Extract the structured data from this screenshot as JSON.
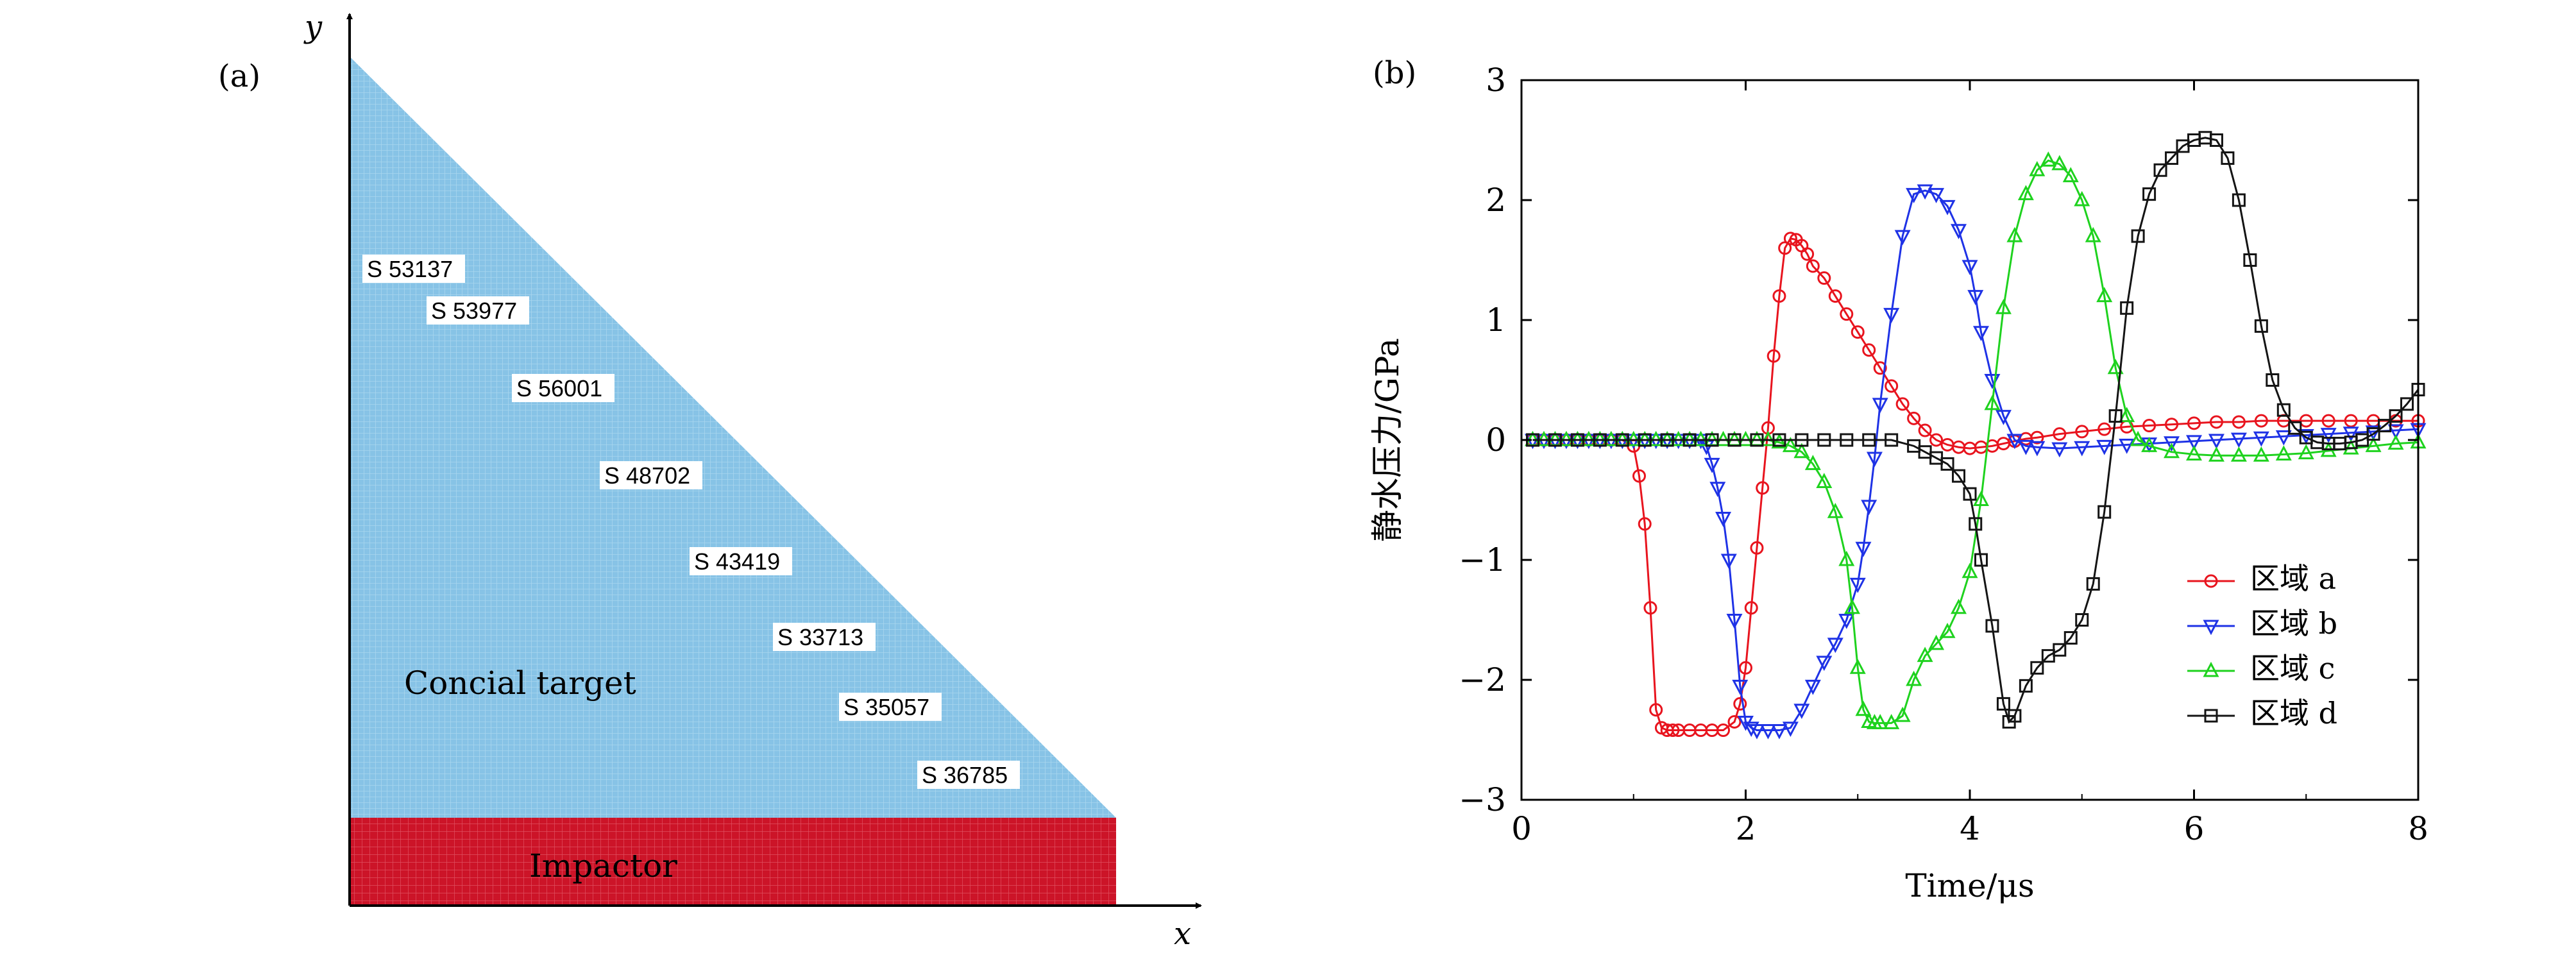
{
  "panel_a": {
    "label": "(a)",
    "x_axis_label": "x",
    "y_axis_label": "y",
    "target_label": "Concial target",
    "impactor_label": "Impactor",
    "sensor_tags": [
      "S 53137",
      "S 53977",
      "S 56001",
      "S 48702",
      "S 43419",
      "S 33713",
      "S 35057",
      "S 36785"
    ],
    "colors": {
      "target": "#87c3e6",
      "impactor": "#cc1428",
      "tag_bg": "#ffffff"
    }
  },
  "chart_data": {
    "type": "line",
    "label": "(b)",
    "xlabel": "Time/μs",
    "ylabel": "静水压力/GPa",
    "xlim": [
      0,
      8
    ],
    "ylim": [
      -3,
      3
    ],
    "xticks": [
      0,
      2,
      4,
      6,
      8
    ],
    "yticks": [
      -3,
      -2,
      -1,
      0,
      1,
      2,
      3
    ],
    "legend_position": "lower-right",
    "series": [
      {
        "name": "区域 a",
        "color": "#e8141e",
        "marker": "circle",
        "x": [
          0.1,
          0.2,
          0.3,
          0.4,
          0.5,
          0.6,
          0.7,
          0.8,
          0.9,
          1.0,
          1.05,
          1.1,
          1.15,
          1.2,
          1.25,
          1.3,
          1.35,
          1.4,
          1.5,
          1.6,
          1.7,
          1.8,
          1.9,
          1.95,
          2.0,
          2.05,
          2.1,
          2.15,
          2.2,
          2.25,
          2.3,
          2.35,
          2.4,
          2.45,
          2.5,
          2.55,
          2.6,
          2.7,
          2.8,
          2.9,
          3.0,
          3.1,
          3.2,
          3.3,
          3.4,
          3.5,
          3.6,
          3.7,
          3.8,
          3.9,
          4.0,
          4.1,
          4.2,
          4.3,
          4.4,
          4.5,
          4.6,
          4.8,
          5.0,
          5.2,
          5.4,
          5.6,
          5.8,
          6.0,
          6.2,
          6.4,
          6.6,
          6.8,
          7.0,
          7.2,
          7.4,
          7.6,
          7.8,
          8.0
        ],
        "y": [
          0,
          0,
          0,
          0,
          0,
          0,
          0,
          0,
          0,
          -0.05,
          -0.3,
          -0.7,
          -1.4,
          -2.25,
          -2.4,
          -2.42,
          -2.42,
          -2.42,
          -2.42,
          -2.42,
          -2.42,
          -2.42,
          -2.35,
          -2.2,
          -1.9,
          -1.4,
          -0.9,
          -0.4,
          0.1,
          0.7,
          1.2,
          1.6,
          1.68,
          1.67,
          1.62,
          1.55,
          1.45,
          1.35,
          1.2,
          1.05,
          0.9,
          0.75,
          0.6,
          0.45,
          0.3,
          0.18,
          0.08,
          0.0,
          -0.04,
          -0.06,
          -0.07,
          -0.06,
          -0.05,
          -0.03,
          -0.01,
          0.01,
          0.02,
          0.05,
          0.07,
          0.09,
          0.11,
          0.12,
          0.13,
          0.14,
          0.15,
          0.15,
          0.16,
          0.16,
          0.16,
          0.16,
          0.16,
          0.16,
          0.16,
          0.16
        ]
      },
      {
        "name": "区域 b",
        "color": "#1e32e6",
        "marker": "triangle-down",
        "x": [
          0.1,
          0.2,
          0.3,
          0.4,
          0.5,
          0.6,
          0.7,
          0.8,
          0.9,
          1.0,
          1.1,
          1.2,
          1.3,
          1.4,
          1.5,
          1.6,
          1.65,
          1.7,
          1.75,
          1.8,
          1.85,
          1.9,
          1.95,
          2.0,
          2.05,
          2.1,
          2.2,
          2.3,
          2.4,
          2.5,
          2.6,
          2.7,
          2.8,
          2.9,
          3.0,
          3.05,
          3.1,
          3.15,
          3.2,
          3.3,
          3.4,
          3.5,
          3.6,
          3.7,
          3.8,
          3.9,
          4.0,
          4.05,
          4.1,
          4.2,
          4.3,
          4.4,
          4.5,
          4.6,
          4.8,
          5.0,
          5.2,
          5.4,
          5.6,
          5.8,
          6.0,
          6.2,
          6.4,
          6.6,
          6.8,
          7.0,
          7.2,
          7.4,
          7.6,
          7.8,
          8.0
        ],
        "y": [
          0,
          0,
          0,
          0,
          0,
          0,
          0,
          0,
          0,
          0,
          0,
          0,
          0,
          0,
          0,
          0,
          -0.05,
          -0.2,
          -0.4,
          -0.65,
          -1.0,
          -1.5,
          -2.05,
          -2.35,
          -2.4,
          -2.42,
          -2.42,
          -2.42,
          -2.4,
          -2.25,
          -2.05,
          -1.85,
          -1.7,
          -1.5,
          -1.2,
          -0.9,
          -0.55,
          -0.15,
          0.3,
          1.05,
          1.7,
          2.05,
          2.08,
          2.05,
          1.95,
          1.75,
          1.45,
          1.2,
          0.9,
          0.5,
          0.2,
          0.0,
          -0.05,
          -0.06,
          -0.07,
          -0.06,
          -0.05,
          -0.04,
          -0.03,
          -0.02,
          -0.01,
          0.0,
          0.01,
          0.02,
          0.03,
          0.04,
          0.05,
          0.06,
          0.07,
          0.08,
          0.09
        ]
      },
      {
        "name": "区域 c",
        "color": "#1ed21e",
        "marker": "triangle-up",
        "x": [
          0.1,
          0.2,
          0.3,
          0.4,
          0.5,
          0.6,
          0.7,
          0.8,
          0.9,
          1.0,
          1.1,
          1.2,
          1.3,
          1.4,
          1.5,
          1.6,
          1.7,
          1.8,
          1.9,
          2.0,
          2.1,
          2.2,
          2.3,
          2.4,
          2.5,
          2.6,
          2.7,
          2.8,
          2.9,
          2.95,
          3.0,
          3.05,
          3.1,
          3.15,
          3.2,
          3.3,
          3.4,
          3.5,
          3.6,
          3.7,
          3.8,
          3.9,
          4.0,
          4.1,
          4.2,
          4.3,
          4.4,
          4.5,
          4.6,
          4.7,
          4.8,
          4.9,
          5.0,
          5.1,
          5.2,
          5.3,
          5.4,
          5.5,
          5.6,
          5.8,
          6.0,
          6.2,
          6.4,
          6.6,
          6.8,
          7.0,
          7.2,
          7.4,
          7.6,
          7.8,
          8.0
        ],
        "y": [
          0,
          0,
          0,
          0,
          0,
          0,
          0,
          0,
          0,
          0,
          0,
          0,
          0,
          0,
          0,
          0,
          0,
          0,
          0,
          0,
          0,
          0,
          -0.02,
          -0.05,
          -0.1,
          -0.2,
          -0.35,
          -0.6,
          -1.0,
          -1.4,
          -1.9,
          -2.25,
          -2.35,
          -2.36,
          -2.36,
          -2.36,
          -2.3,
          -2.0,
          -1.8,
          -1.7,
          -1.6,
          -1.4,
          -1.1,
          -0.5,
          0.3,
          1.1,
          1.7,
          2.05,
          2.25,
          2.33,
          2.3,
          2.2,
          2.0,
          1.7,
          1.2,
          0.6,
          0.2,
          0.0,
          -0.05,
          -0.1,
          -0.12,
          -0.13,
          -0.13,
          -0.13,
          -0.12,
          -0.11,
          -0.09,
          -0.07,
          -0.05,
          -0.03,
          -0.02
        ]
      },
      {
        "name": "区域 d",
        "color": "#141414",
        "marker": "square",
        "x": [
          0.1,
          0.3,
          0.5,
          0.7,
          0.9,
          1.1,
          1.3,
          1.5,
          1.7,
          1.9,
          2.1,
          2.3,
          2.5,
          2.7,
          2.9,
          3.1,
          3.3,
          3.5,
          3.6,
          3.7,
          3.8,
          3.9,
          4.0,
          4.05,
          4.1,
          4.2,
          4.3,
          4.35,
          4.4,
          4.5,
          4.6,
          4.7,
          4.8,
          4.9,
          5.0,
          5.1,
          5.2,
          5.3,
          5.4,
          5.5,
          5.6,
          5.7,
          5.8,
          5.9,
          6.0,
          6.1,
          6.2,
          6.3,
          6.4,
          6.5,
          6.6,
          6.7,
          6.8,
          6.9,
          7.0,
          7.1,
          7.2,
          7.3,
          7.4,
          7.5,
          7.6,
          7.7,
          7.8,
          7.9,
          8.0
        ],
        "y": [
          0,
          0,
          0,
          0,
          0,
          0,
          0,
          0,
          0,
          0,
          0,
          0,
          0,
          0,
          0,
          0,
          0,
          -0.05,
          -0.1,
          -0.15,
          -0.2,
          -0.3,
          -0.45,
          -0.7,
          -1.0,
          -1.55,
          -2.2,
          -2.35,
          -2.3,
          -2.05,
          -1.9,
          -1.8,
          -1.75,
          -1.65,
          -1.5,
          -1.2,
          -0.6,
          0.2,
          1.1,
          1.7,
          2.05,
          2.25,
          2.35,
          2.45,
          2.5,
          2.52,
          2.5,
          2.35,
          2.0,
          1.5,
          0.95,
          0.5,
          0.25,
          0.1,
          0.02,
          -0.02,
          -0.03,
          -0.03,
          -0.02,
          0.0,
          0.05,
          0.12,
          0.2,
          0.3,
          0.42
        ]
      }
    ]
  }
}
